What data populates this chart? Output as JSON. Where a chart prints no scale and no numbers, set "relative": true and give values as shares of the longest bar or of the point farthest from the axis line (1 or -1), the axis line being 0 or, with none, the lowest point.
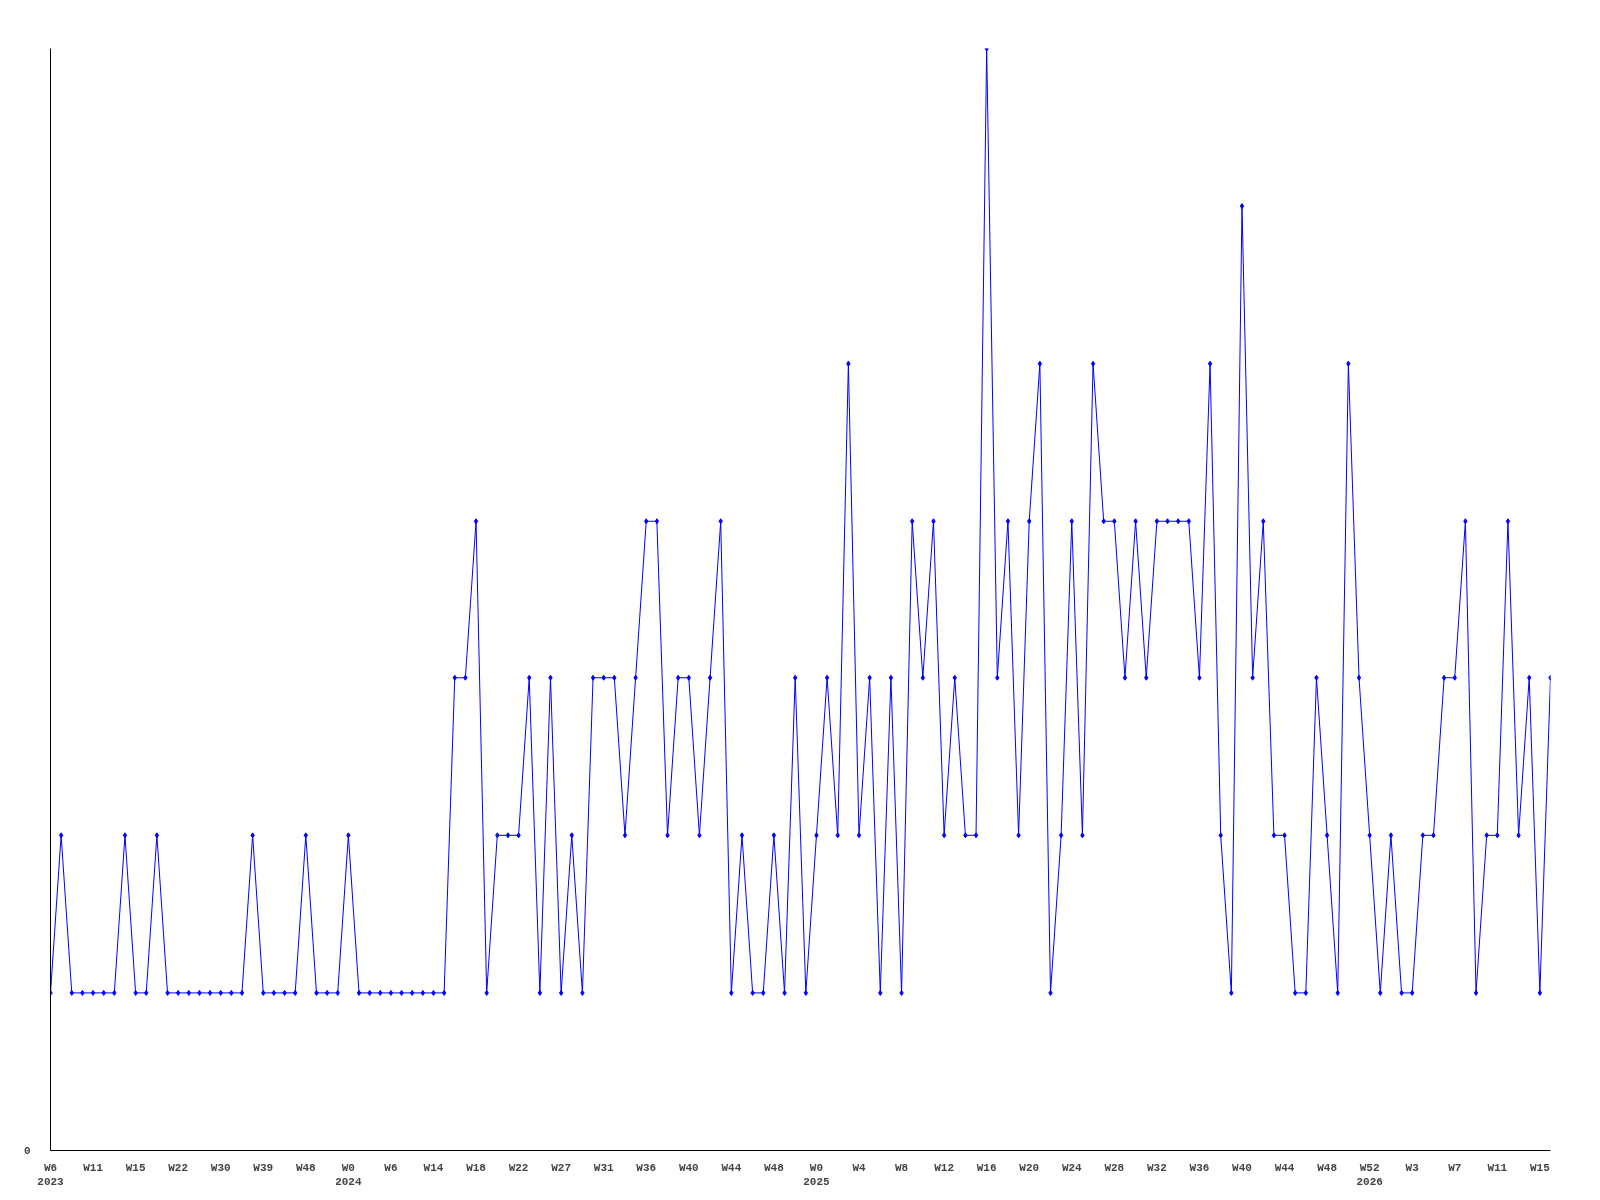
{
  "chart_data": {
    "type": "line",
    "relative": true,
    "marker": "diamond",
    "grid": false,
    "line_style": "solid",
    "annotations": [
      "0"
    ],
    "categories": [
      "W6\n2023",
      null,
      null,
      null,
      "W11",
      null,
      null,
      null,
      "W15",
      null,
      null,
      null,
      "W22",
      null,
      null,
      null,
      "W30",
      null,
      null,
      null,
      "W39",
      null,
      null,
      null,
      "W48",
      null,
      null,
      null,
      "W0\n2024",
      null,
      null,
      null,
      "W6",
      null,
      null,
      null,
      "W14",
      null,
      null,
      null,
      "W18",
      null,
      null,
      null,
      "W22",
      null,
      null,
      null,
      "W27",
      null,
      null,
      null,
      "W31",
      null,
      null,
      null,
      "W36",
      null,
      null,
      null,
      "W40",
      null,
      null,
      null,
      "W44",
      null,
      null,
      null,
      "W48",
      null,
      null,
      null,
      "W0\n2025",
      null,
      null,
      null,
      "W4",
      null,
      null,
      null,
      "W8",
      null,
      null,
      null,
      "W12",
      null,
      null,
      null,
      "W16",
      null,
      null,
      null,
      "W20",
      null,
      null,
      null,
      "W24",
      null,
      null,
      null,
      "W28",
      null,
      null,
      null,
      "W32",
      null,
      null,
      null,
      "W36",
      null,
      null,
      null,
      "W40",
      null,
      null,
      null,
      "W44",
      null,
      null,
      null,
      "W48",
      null,
      null,
      null,
      "W52\n2026",
      null,
      null,
      null,
      "W3",
      null,
      null,
      null,
      "W7",
      null,
      null,
      null,
      "W11",
      null,
      null,
      null,
      "W15",
      null
    ],
    "series": [
      {
        "color": "#0000ff",
        "values": [
          0.143,
          0.286,
          0.143,
          0.143,
          0.143,
          0.143,
          0.143,
          0.286,
          0.143,
          0.143,
          0.286,
          0.143,
          0.143,
          0.143,
          0.143,
          0.143,
          0.143,
          0.143,
          0.143,
          0.286,
          0.143,
          0.143,
          0.143,
          0.143,
          0.286,
          0.143,
          0.143,
          0.143,
          0.286,
          0.143,
          0.143,
          0.143,
          0.143,
          0.143,
          0.143,
          0.143,
          0.143,
          0.143,
          0.429,
          0.429,
          0.571,
          0.143,
          0.286,
          0.286,
          0.286,
          0.429,
          0.143,
          0.429,
          0.143,
          0.286,
          0.143,
          0.429,
          0.429,
          0.429,
          0.286,
          0.429,
          0.571,
          0.571,
          0.286,
          0.429,
          0.429,
          0.286,
          0.429,
          0.571,
          0.143,
          0.286,
          0.143,
          0.143,
          0.286,
          0.143,
          0.429,
          0.143,
          0.286,
          0.429,
          0.286,
          0.714,
          0.286,
          0.429,
          0.143,
          0.429,
          0.143,
          0.571,
          0.429,
          0.571,
          0.286,
          0.429,
          0.286,
          0.286,
          1,
          0.429,
          0.571,
          0.286,
          0.571,
          0.714,
          0.143,
          0.286,
          0.571,
          0.286,
          0.714,
          0.571,
          0.571,
          0.429,
          0.571,
          0.429,
          0.571,
          0.571,
          0.571,
          0.571,
          0.429,
          0.714,
          0.286,
          0.143,
          0.857,
          0.429,
          0.571,
          0.286,
          0.286,
          0.143,
          0.143,
          0.429,
          0.286,
          0.143,
          0.714,
          0.429,
          0.286,
          0.143,
          0.286,
          0.143,
          0.143,
          0.286,
          0.286,
          0.429,
          0.429,
          0.571,
          0.143,
          0.286,
          0.286,
          0.571,
          0.286,
          0.429,
          0.143,
          0.429
        ]
      }
    ]
  }
}
